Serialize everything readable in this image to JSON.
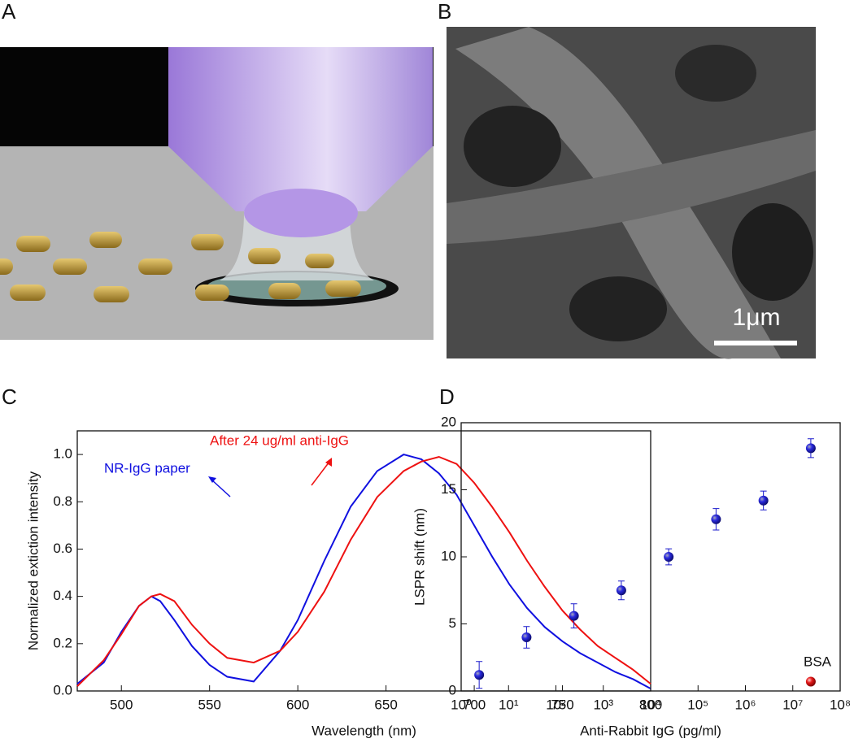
{
  "panel_labels": [
    "A",
    "B",
    "C",
    "D"
  ],
  "scale_bar": "1μm",
  "chart_data": [
    {
      "type": "line",
      "xlabel": "Wavelength (nm)",
      "ylabel": "Normalized extiction intensity",
      "x": [
        475,
        490,
        500,
        510,
        517,
        522,
        530,
        540,
        550,
        560,
        575,
        590,
        600,
        615,
        630,
        645,
        660,
        670,
        680,
        690,
        700,
        710,
        720,
        730,
        740,
        750,
        760,
        770,
        780,
        790,
        800
      ],
      "series": [
        {
          "name": "NR-IgG paper",
          "color": "#1010e0",
          "values": [
            0.03,
            0.12,
            0.25,
            0.36,
            0.4,
            0.38,
            0.3,
            0.19,
            0.11,
            0.06,
            0.04,
            0.17,
            0.3,
            0.55,
            0.78,
            0.93,
            1.0,
            0.98,
            0.92,
            0.83,
            0.7,
            0.57,
            0.45,
            0.35,
            0.27,
            0.21,
            0.16,
            0.12,
            0.08,
            0.05,
            0.01
          ]
        },
        {
          "name": "After 24 ug/ml anti-IgG",
          "color": "#ee1111",
          "values": [
            0.02,
            0.13,
            0.24,
            0.36,
            0.4,
            0.41,
            0.38,
            0.28,
            0.2,
            0.14,
            0.12,
            0.17,
            0.25,
            0.42,
            0.64,
            0.82,
            0.93,
            0.97,
            0.99,
            0.96,
            0.88,
            0.78,
            0.67,
            0.55,
            0.44,
            0.34,
            0.26,
            0.19,
            0.14,
            0.09,
            0.03
          ]
        }
      ],
      "xlim": [
        475,
        800
      ],
      "xticks": [
        500,
        550,
        600,
        650,
        700,
        750,
        800
      ],
      "ylim": [
        0,
        1.1
      ],
      "yticks": [
        {
          "value": 0,
          "label": "0.0"
        },
        0.2,
        0.4,
        0.6,
        0.8,
        {
          "value": 1,
          "label": "1.0"
        }
      ]
    },
    {
      "type": "scatter",
      "xlog": true,
      "xlabel": "Anti-Rabbit IgG (pg/ml)",
      "ylabel": "LSPR shift (nm)",
      "series": [
        {
          "color": "#1a1acc",
          "x": [
            2.4,
            24,
            240,
            2400,
            24000,
            240000,
            2400000,
            24000000
          ],
          "values": [
            1.2,
            4.0,
            5.6,
            7.5,
            10.0,
            12.8,
            14.2,
            18.1
          ],
          "errors": [
            1.0,
            0.8,
            0.9,
            0.7,
            0.6,
            0.8,
            0.7,
            0.7
          ]
        },
        {
          "name": "BSA",
          "color": "#e01010",
          "x": [
            24000000
          ],
          "values": [
            0.7
          ]
        }
      ],
      "xlim": [
        1,
        100000000
      ],
      "xticks": [
        {
          "value": 1,
          "label": "10⁰"
        },
        {
          "value": 10,
          "label": "10¹"
        },
        {
          "value": 100,
          "label": "10²"
        },
        {
          "value": 1000,
          "label": "10³"
        },
        {
          "value": 10000,
          "label": "10⁴"
        },
        {
          "value": 100000,
          "label": "10⁵"
        },
        {
          "value": 1000000,
          "label": "10⁶"
        },
        {
          "value": 10000000,
          "label": "10⁷"
        },
        {
          "value": 100000000,
          "label": "10⁸"
        }
      ],
      "ylim": [
        0,
        20
      ],
      "yticks": [
        0,
        5,
        10,
        15,
        20
      ]
    }
  ]
}
